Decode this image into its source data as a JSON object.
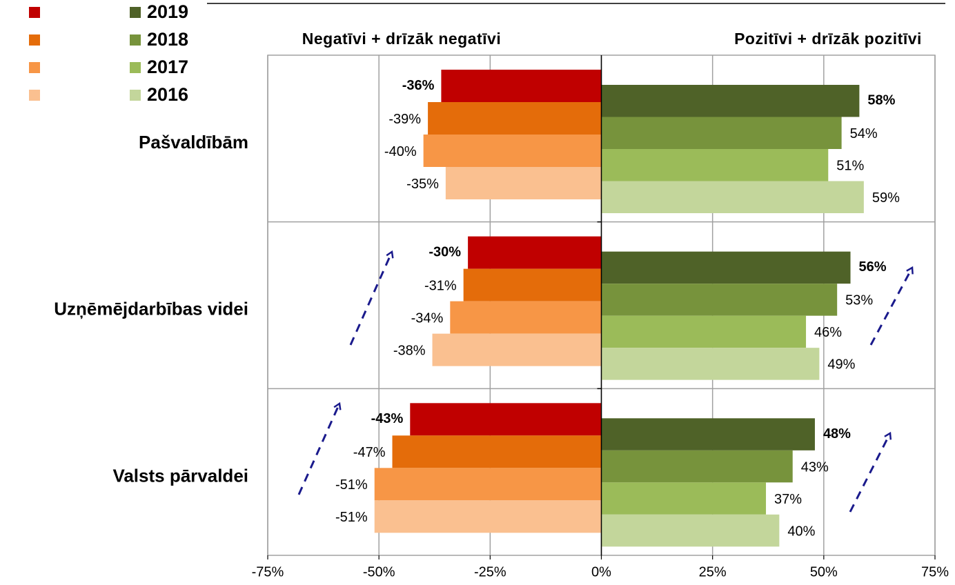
{
  "chart_data": {
    "type": "diverging-bar",
    "annotations": [
      "Negatīvi + drīzāk negatīvi",
      "Pozitīvi + drīzāk pozitīvi"
    ],
    "categories": [
      "Pašvaldībām",
      "Uzņēmējdarbības videi",
      "Valsts pārvaldei"
    ],
    "series": [
      {
        "color": "#c00000",
        "values": [
          -36,
          -30,
          -43
        ],
        "value_labels": [
          "-36%",
          "-30%",
          "-43%"
        ]
      },
      {
        "color": "#e46c0a",
        "values": [
          -39,
          -31,
          -47
        ],
        "value_labels": [
          "-39%",
          "-31%",
          "-47%"
        ]
      },
      {
        "color": "#f79646",
        "values": [
          -40,
          -34,
          -51
        ],
        "value_labels": [
          "-40%",
          "-34%",
          "-51%"
        ]
      },
      {
        "color": "#fac090",
        "values": [
          -35,
          -38,
          -51
        ],
        "value_labels": [
          "-35%",
          "-38%",
          "-51%"
        ]
      },
      {
        "name": "2019",
        "color": "#4f6228",
        "values": [
          58,
          56,
          48
        ],
        "value_labels": [
          "58%",
          "56%",
          "48%"
        ]
      },
      {
        "name": "2018",
        "color": "#77933c",
        "values": [
          54,
          53,
          43
        ],
        "value_labels": [
          "54%",
          "53%",
          "43%"
        ]
      },
      {
        "name": "2017",
        "color": "#9bbb59",
        "values": [
          51,
          46,
          37
        ],
        "value_labels": [
          "51%",
          "46%",
          "37%"
        ]
      },
      {
        "name": "2016",
        "color": "#c3d69b",
        "values": [
          59,
          49,
          40
        ],
        "value_labels": [
          "59%",
          "49%",
          "40%"
        ]
      }
    ],
    "xlim": [
      -75,
      75
    ],
    "xticks": [
      {
        "value": -75,
        "label": "-75%"
      },
      {
        "value": -50,
        "label": "-50%"
      },
      {
        "value": -25,
        "label": "-25%"
      },
      {
        "value": 0,
        "label": "0%"
      },
      {
        "value": 25,
        "label": "25%"
      },
      {
        "value": 50,
        "label": "50%"
      },
      {
        "value": 75,
        "label": "75%"
      }
    ],
    "grid": true
  }
}
